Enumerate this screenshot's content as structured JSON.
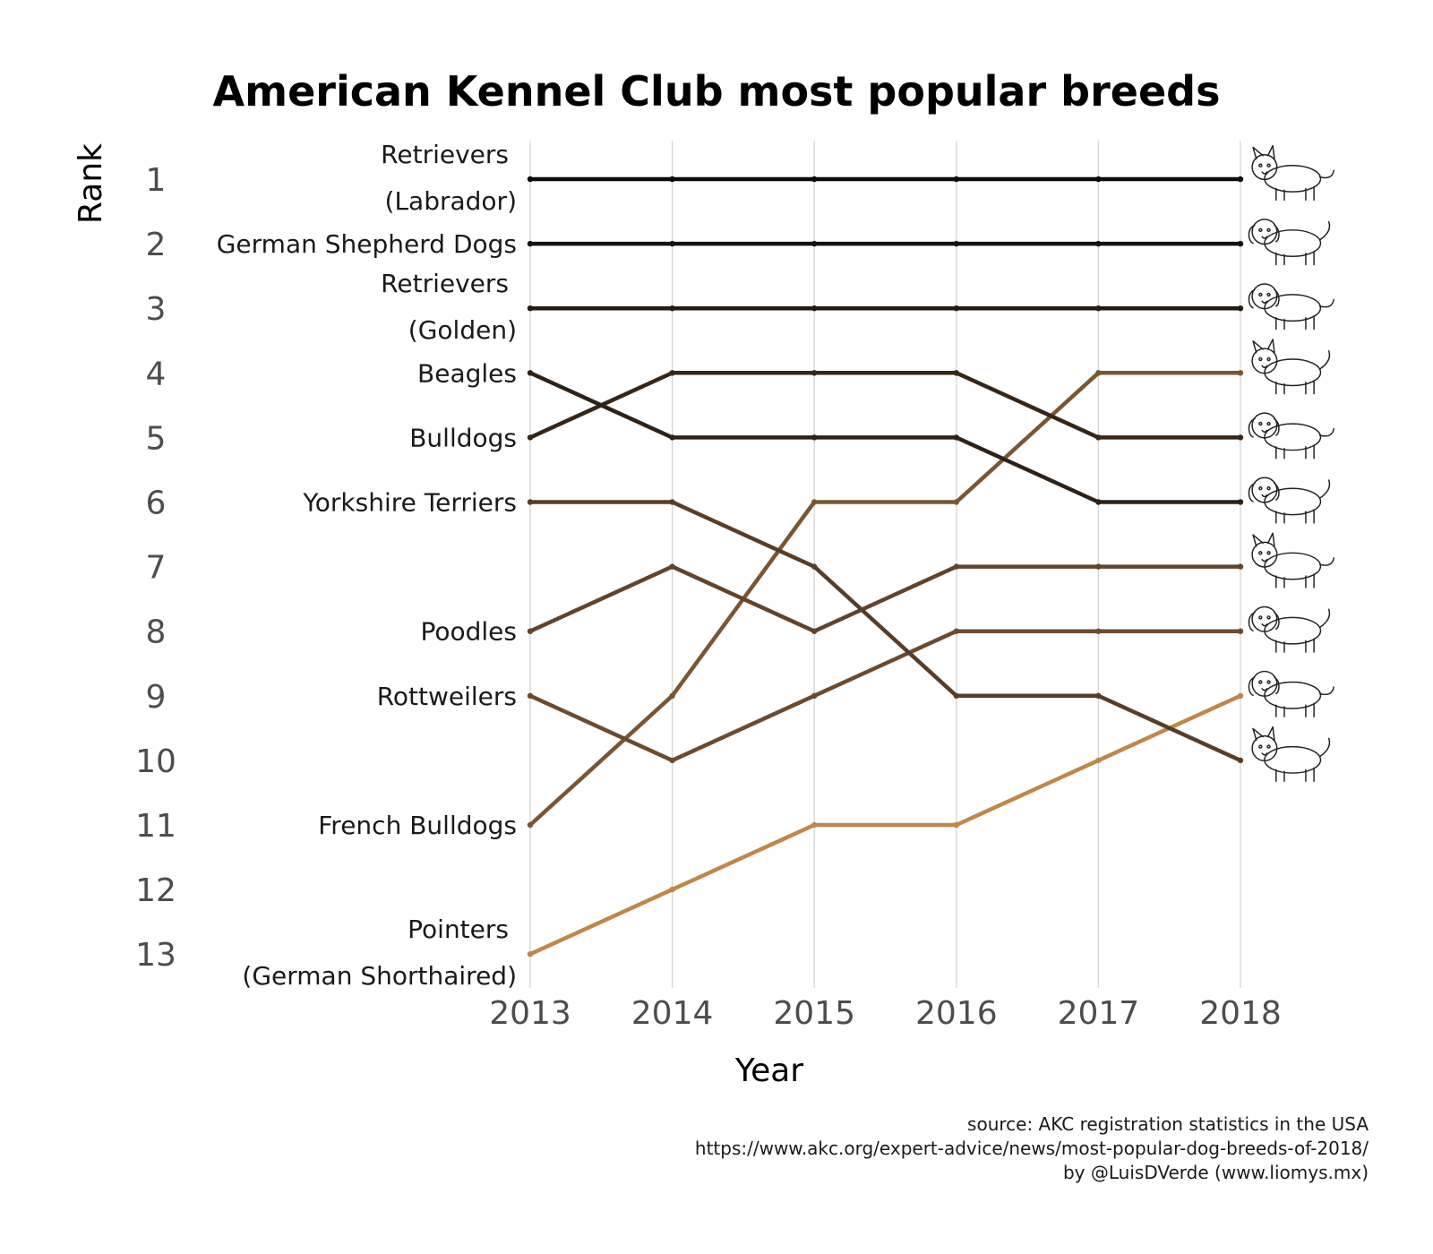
{
  "chart_data": {
    "type": "line",
    "title": "American Kennel Club most popular breeds",
    "xlabel": "Year",
    "ylabel": "Rank",
    "x": [
      2013,
      2014,
      2015,
      2016,
      2017,
      2018
    ],
    "y_ticks": [
      "1",
      "2",
      "3",
      "4",
      "5",
      "6",
      "7",
      "8",
      "9",
      "10",
      "11",
      "12",
      "13"
    ],
    "x_ticks": [
      "2013",
      "2014",
      "2015",
      "2016",
      "2017",
      "2018"
    ],
    "ylim": [
      13,
      1
    ],
    "y_reversed": true,
    "grid": "vertical",
    "legend": "none",
    "series": [
      {
        "name": "Retrievers (Labrador)",
        "label_lines": [
          "Retrievers",
          "(Labrador)"
        ],
        "values": [
          1,
          1,
          1,
          1,
          1,
          1
        ],
        "color": "#0a0a0a"
      },
      {
        "name": "German Shepherd Dogs",
        "label_lines": [
          "German Shepherd Dogs"
        ],
        "values": [
          2,
          2,
          2,
          2,
          2,
          2
        ],
        "color": "#16120f"
      },
      {
        "name": "Retrievers (Golden)",
        "label_lines": [
          "Retrievers",
          "(Golden)"
        ],
        "values": [
          3,
          3,
          3,
          3,
          3,
          3
        ],
        "color": "#231a13"
      },
      {
        "name": "Beagles",
        "label_lines": [
          "Beagles"
        ],
        "values": [
          4,
          5,
          5,
          5,
          6,
          6
        ],
        "color": "#2e2218"
      },
      {
        "name": "Bulldogs",
        "label_lines": [
          "Bulldogs"
        ],
        "values": [
          5,
          4,
          4,
          4,
          5,
          5
        ],
        "color": "#352619"
      },
      {
        "name": "Yorkshire Terriers",
        "label_lines": [
          "Yorkshire Terriers"
        ],
        "values": [
          6,
          6,
          7,
          9,
          9,
          10
        ],
        "color": "#5a3d27"
      },
      {
        "name": "Poodles",
        "label_lines": [
          "Poodles"
        ],
        "values": [
          8,
          7,
          8,
          7,
          7,
          7
        ],
        "color": "#63432a"
      },
      {
        "name": "Rottweilers",
        "label_lines": [
          "Rottweilers"
        ],
        "values": [
          9,
          10,
          9,
          8,
          8,
          8
        ],
        "color": "#6d4a2e"
      },
      {
        "name": "French Bulldogs",
        "label_lines": [
          "French Bulldogs"
        ],
        "values": [
          11,
          9,
          6,
          6,
          4,
          4
        ],
        "color": "#7b5533"
      },
      {
        "name": "Pointers (German Shorthaired)",
        "label_lines": [
          "Pointers",
          "(German Shorthaired)"
        ],
        "values": [
          13,
          12,
          11,
          11,
          10,
          9
        ],
        "color": "#c1864a"
      }
    ],
    "caption": [
      "source: AKC registration statistics in the USA",
      "https://www.akc.org/expert-advice/news/most-popular-dog-breeds-of-2018/",
      "by @LuisDVerde (www.liomys.mx)"
    ],
    "end_icons": [
      "labrador-dog-icon",
      "german-shepherd-dog-icon",
      "golden-retriever-dog-icon",
      "french-bulldog-dog-icon",
      "bulldog-dog-icon",
      "beagle-dog-icon",
      "poodle-dog-icon",
      "rottweiler-dog-icon",
      "pointer-dog-icon",
      "yorkshire-terrier-dog-icon"
    ]
  }
}
